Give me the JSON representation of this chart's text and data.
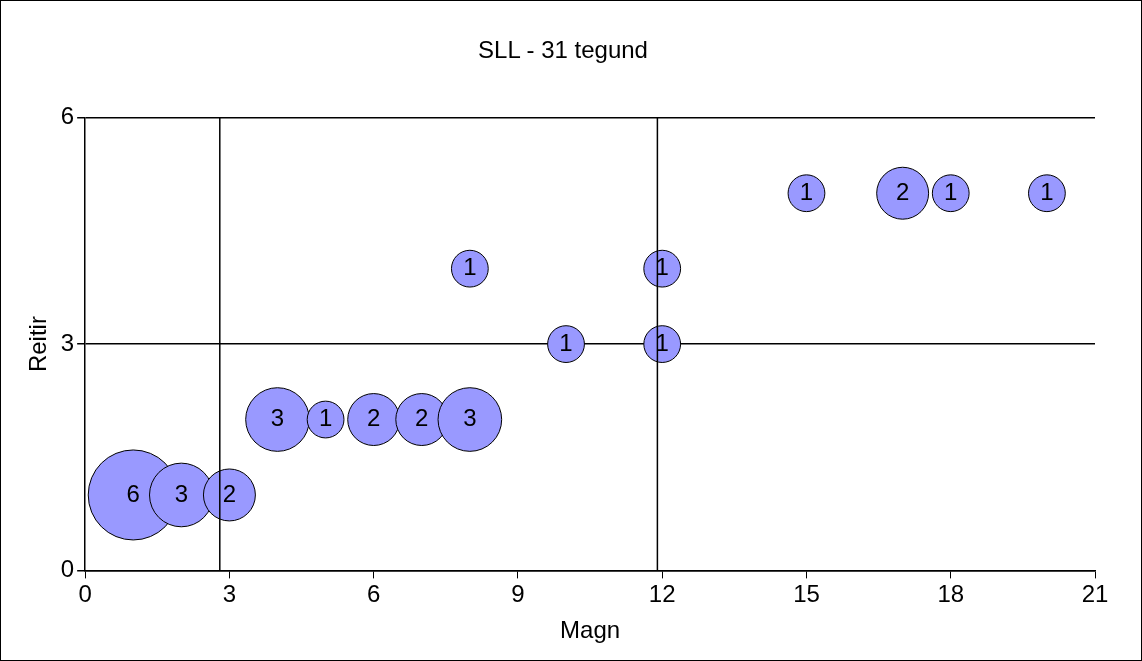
{
  "chart_data": {
    "type": "bubble",
    "title": "SLL - 31 tegund",
    "xlabel": "Magn",
    "ylabel": "Reitir",
    "x": [
      1,
      2,
      3,
      4,
      5,
      6,
      7,
      8,
      8,
      10,
      12,
      12,
      15,
      17,
      18,
      20
    ],
    "values": [
      1,
      1,
      1,
      2,
      2,
      2,
      2,
      2,
      4,
      3,
      3,
      4,
      5,
      5,
      5,
      5
    ],
    "sizes": [
      1,
      0.5,
      0.333,
      0.5,
      0.167,
      0.333,
      0.333,
      0.5,
      0.167,
      0.167,
      0.167,
      0.167,
      0.167,
      0.333,
      0.167,
      0.167
    ],
    "annotations": [
      {
        "text": "6",
        "x": 1,
        "y": 1
      },
      {
        "text": "3",
        "x": 2,
        "y": 1
      },
      {
        "text": "2",
        "x": 3,
        "y": 1
      },
      {
        "text": "3",
        "x": 4,
        "y": 2
      },
      {
        "text": "1",
        "x": 5,
        "y": 2
      },
      {
        "text": "2",
        "x": 6,
        "y": 2
      },
      {
        "text": "2",
        "x": 7,
        "y": 2
      },
      {
        "text": "3",
        "x": 8,
        "y": 2
      },
      {
        "text": "1",
        "x": 8,
        "y": 4
      },
      {
        "text": "1",
        "x": 10,
        "y": 3
      },
      {
        "text": "1",
        "x": 12,
        "y": 3
      },
      {
        "text": "1",
        "x": 12,
        "y": 4
      },
      {
        "text": "1",
        "x": 15,
        "y": 5
      },
      {
        "text": "2",
        "x": 17,
        "y": 5
      },
      {
        "text": "1",
        "x": 18,
        "y": 5
      },
      {
        "text": "1",
        "x": 20,
        "y": 5
      }
    ],
    "color": "#9999ff",
    "xlim": [
      0,
      21
    ],
    "xticks": [
      0,
      3,
      6,
      9,
      12,
      15,
      18,
      21
    ],
    "ylim": [
      0,
      6
    ],
    "yticks": [
      0,
      3,
      6
    ],
    "grid": "y",
    "legend": false,
    "ref_lines": [
      {
        "axis": "x",
        "value": 2.8
      },
      {
        "axis": "x",
        "value": 11.9
      }
    ]
  }
}
